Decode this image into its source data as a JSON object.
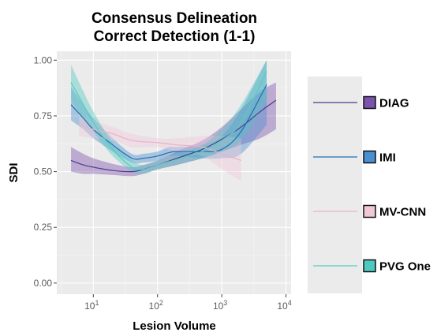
{
  "chart_data": {
    "type": "line",
    "title_line1": "Consensus Delineation",
    "title_line2": "Correct Detection (1-1)",
    "xlabel": "Lesion Volume",
    "ylabel": "SDI",
    "x_scale": "log10",
    "xlim": [
      2.7,
      12000
    ],
    "ylim": [
      -0.05,
      1.04
    ],
    "x_ticks": [
      {
        "value": 10,
        "base": "10",
        "exp": "1"
      },
      {
        "value": 100,
        "base": "10",
        "exp": "2"
      },
      {
        "value": 1000,
        "base": "10",
        "exp": "3"
      },
      {
        "value": 10000,
        "base": "10",
        "exp": "4"
      }
    ],
    "y_ticks": [
      {
        "value": 0.0,
        "label": "0.00"
      },
      {
        "value": 0.25,
        "label": "0.25"
      },
      {
        "value": 0.5,
        "label": "0.50"
      },
      {
        "value": 0.75,
        "label": "0.75"
      },
      {
        "value": 1.0,
        "label": "1.00"
      }
    ],
    "grid": true,
    "legend_position": "right",
    "series": [
      {
        "name": "DIAG",
        "color": "#4b3b8f",
        "fill": "#7b52ae",
        "x": [
          4.5,
          7,
          10,
          20,
          40,
          60,
          100,
          200,
          500,
          1000,
          2000,
          4000,
          7000
        ],
        "y": [
          0.55,
          0.53,
          0.52,
          0.505,
          0.5,
          0.51,
          0.53,
          0.56,
          0.6,
          0.645,
          0.7,
          0.77,
          0.82
        ],
        "lower": [
          0.5,
          0.49,
          0.49,
          0.485,
          0.48,
          0.49,
          0.51,
          0.53,
          0.56,
          0.59,
          0.62,
          0.65,
          0.69
        ],
        "upper": [
          0.61,
          0.58,
          0.56,
          0.535,
          0.52,
          0.53,
          0.55,
          0.59,
          0.64,
          0.7,
          0.78,
          0.86,
          0.9
        ]
      },
      {
        "name": "IMI",
        "color": "#1f6fb4",
        "fill": "#4a90d0",
        "x": [
          4.5,
          7,
          10,
          20,
          40,
          60,
          100,
          150,
          200,
          500,
          1000,
          2000,
          5000
        ],
        "y": [
          0.8,
          0.74,
          0.69,
          0.62,
          0.56,
          0.56,
          0.57,
          0.585,
          0.59,
          0.59,
          0.6,
          0.68,
          0.89
        ],
        "lower": [
          0.73,
          0.69,
          0.65,
          0.59,
          0.54,
          0.54,
          0.55,
          0.57,
          0.57,
          0.56,
          0.56,
          0.58,
          0.71
        ],
        "upper": [
          0.88,
          0.8,
          0.74,
          0.65,
          0.58,
          0.58,
          0.59,
          0.61,
          0.61,
          0.62,
          0.66,
          0.78,
          1.0
        ]
      },
      {
        "name": "MV-CNN",
        "color": "#e6b3c8",
        "fill": "#f0c8d8",
        "x": [
          6,
          10,
          20,
          40,
          100,
          200,
          500,
          1000,
          2000
        ],
        "y": [
          0.71,
          0.69,
          0.67,
          0.64,
          0.63,
          0.62,
          0.61,
          0.58,
          0.55
        ],
        "lower": [
          0.66,
          0.65,
          0.64,
          0.61,
          0.61,
          0.59,
          0.57,
          0.51,
          0.46
        ],
        "upper": [
          0.76,
          0.73,
          0.7,
          0.67,
          0.65,
          0.65,
          0.66,
          0.66,
          0.65
        ]
      },
      {
        "name": "PVG One",
        "color": "#5cc9c4",
        "fill": "#50c8c0",
        "x": [
          4.5,
          7,
          10,
          20,
          40,
          60,
          100,
          200,
          500,
          1000,
          2000,
          5000
        ],
        "y": [
          0.9,
          0.8,
          0.72,
          0.6,
          0.52,
          0.51,
          0.53,
          0.555,
          0.59,
          0.64,
          0.72,
          0.95
        ],
        "lower": [
          0.82,
          0.74,
          0.68,
          0.57,
          0.5,
          0.49,
          0.51,
          0.53,
          0.56,
          0.59,
          0.64,
          0.82
        ],
        "upper": [
          0.98,
          0.86,
          0.77,
          0.63,
          0.55,
          0.53,
          0.55,
          0.58,
          0.62,
          0.69,
          0.8,
          1.0
        ]
      }
    ]
  }
}
